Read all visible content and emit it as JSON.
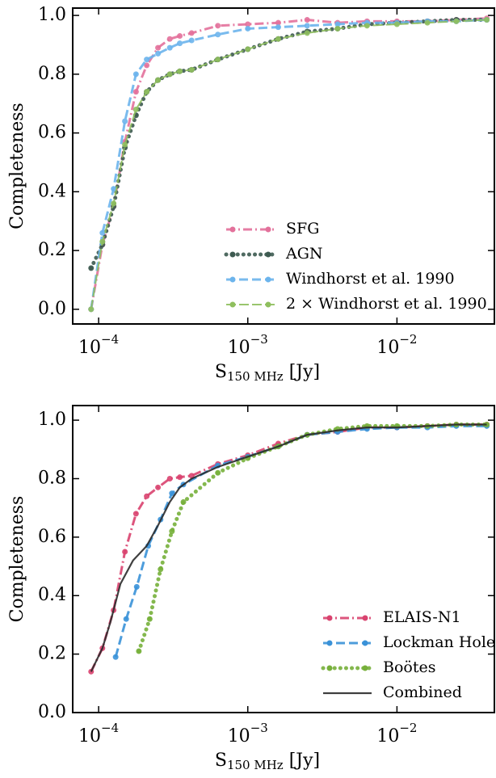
{
  "chart_data": [
    {
      "type": "line",
      "xlabel": "S150 MHz [Jy]",
      "ylabel": "Completeness",
      "xscale": "log",
      "xlim": [
        6.7e-05,
        0.045
      ],
      "ylim": [
        -0.05,
        1.025
      ],
      "xticks": [
        {
          "value": 0.0001,
          "label": "10−4"
        },
        {
          "value": 0.001,
          "label": "10−3"
        },
        {
          "value": 0.01,
          "label": "10−2"
        }
      ],
      "yticks": [
        {
          "value": 0,
          "label": "0.0"
        },
        {
          "value": 0.2,
          "label": "0.2"
        },
        {
          "value": 0.4,
          "label": "0.4"
        },
        {
          "value": 0.6,
          "label": "0.6"
        },
        {
          "value": 0.8,
          "label": "0.8"
        },
        {
          "value": 1,
          "label": "1.0"
        }
      ],
      "legend": "lower right",
      "series": [
        {
          "name": "SFG",
          "color": "#e3719b",
          "linestyle": "dashdot",
          "marker": "circle",
          "x": [
            8.9e-05,
            0.000106,
            0.000126,
            0.00015,
            0.000178,
            0.00021,
            0.00025,
            0.0003,
            0.00035,
            0.00042,
            0.00063,
            0.001,
            0.0016,
            0.0025,
            0.004,
            0.0063,
            0.01,
            0.016,
            0.025,
            0.04
          ],
          "values": [
            0.0,
            0.22,
            0.35,
            0.57,
            0.74,
            0.83,
            0.89,
            0.92,
            0.93,
            0.94,
            0.965,
            0.97,
            0.975,
            0.985,
            0.975,
            0.98,
            0.98,
            0.98,
            0.985,
            0.99
          ]
        },
        {
          "name": "AGN",
          "color": "#3d5a50",
          "linestyle": "dotted",
          "marker": "circle",
          "x": [
            8.9e-05,
            0.000106,
            0.000126,
            0.00015,
            0.000178,
            0.00021,
            0.00025,
            0.0003,
            0.00035,
            0.00042,
            0.00063,
            0.001,
            0.0016,
            0.0025,
            0.004,
            0.0063,
            0.01,
            0.016,
            0.025,
            0.04
          ],
          "values": [
            0.14,
            0.22,
            0.35,
            0.55,
            0.66,
            0.74,
            0.78,
            0.8,
            0.81,
            0.815,
            0.85,
            0.885,
            0.92,
            0.945,
            0.955,
            0.97,
            0.975,
            0.98,
            0.985,
            0.985
          ]
        },
        {
          "name": "Windhorst et al. 1990",
          "color": "#6cb4ec",
          "linestyle": "dashed",
          "marker": "circle",
          "x": [
            8.9e-05,
            0.000106,
            0.000126,
            0.00015,
            0.000178,
            0.00021,
            0.00025,
            0.0003,
            0.00035,
            0.00042,
            0.00063,
            0.001,
            0.0016,
            0.0025,
            0.004,
            0.0063,
            0.01,
            0.016,
            0.025,
            0.04
          ],
          "values": [
            0.0,
            0.26,
            0.41,
            0.64,
            0.8,
            0.85,
            0.87,
            0.89,
            0.905,
            0.915,
            0.935,
            0.955,
            0.96,
            0.965,
            0.97,
            0.975,
            0.975,
            0.98,
            0.98,
            0.985
          ]
        },
        {
          "name": "2 × Windhorst et al. 1990",
          "color": "#8fbf5e",
          "linestyle": "longdash",
          "marker": "circle",
          "x": [
            8.9e-05,
            0.000106,
            0.000126,
            0.00015,
            0.000178,
            0.00021,
            0.00025,
            0.0003,
            0.00035,
            0.00042,
            0.00063,
            0.001,
            0.0016,
            0.0025,
            0.004,
            0.0063,
            0.01,
            0.016,
            0.025,
            0.04
          ],
          "values": [
            0.0,
            0.23,
            0.36,
            0.56,
            0.68,
            0.74,
            0.78,
            0.8,
            0.81,
            0.815,
            0.85,
            0.885,
            0.92,
            0.94,
            0.955,
            0.965,
            0.97,
            0.975,
            0.98,
            0.985
          ]
        }
      ]
    },
    {
      "type": "line",
      "xlabel": "S150 MHz [Jy]",
      "ylabel": "Completeness",
      "xscale": "log",
      "xlim": [
        6.7e-05,
        0.045
      ],
      "ylim": [
        0,
        1.05
      ],
      "xticks": [
        {
          "value": 0.0001,
          "label": "10−4"
        },
        {
          "value": 0.001,
          "label": "10−3"
        },
        {
          "value": 0.01,
          "label": "10−2"
        }
      ],
      "yticks": [
        {
          "value": 0,
          "label": "0.0"
        },
        {
          "value": 0.2,
          "label": "0.2"
        },
        {
          "value": 0.4,
          "label": "0.4"
        },
        {
          "value": 0.6,
          "label": "0.6"
        },
        {
          "value": 0.8,
          "label": "0.8"
        },
        {
          "value": 1,
          "label": "1.0"
        }
      ],
      "legend": "lower right",
      "series": [
        {
          "name": "ELAIS-N1",
          "color": "#d9436f",
          "linestyle": "dashdot",
          "marker": "circle",
          "x": [
            8.9e-05,
            0.000106,
            0.000126,
            0.00015,
            0.000178,
            0.00021,
            0.00025,
            0.0003,
            0.00035,
            0.00042,
            0.00063,
            0.001,
            0.0016,
            0.0025,
            0.004,
            0.0063,
            0.01,
            0.016,
            0.025,
            0.04
          ],
          "values": [
            0.14,
            0.22,
            0.35,
            0.55,
            0.68,
            0.74,
            0.77,
            0.8,
            0.805,
            0.81,
            0.85,
            0.88,
            0.92,
            0.95,
            0.96,
            0.975,
            0.975,
            0.98,
            0.985,
            0.985
          ]
        },
        {
          "name": "Lockman Hole",
          "color": "#3a92d8",
          "linestyle": "dashed",
          "marker": "circle",
          "x": [
            0.00013,
            0.000153,
            0.00018,
            0.000215,
            0.00026,
            0.00031,
            0.00037,
            0.00063,
            0.001,
            0.0016,
            0.0025,
            0.004,
            0.0063,
            0.01,
            0.016,
            0.025,
            0.04
          ],
          "values": [
            0.19,
            0.32,
            0.43,
            0.57,
            0.66,
            0.75,
            0.78,
            0.845,
            0.875,
            0.91,
            0.95,
            0.96,
            0.97,
            0.975,
            0.975,
            0.98,
            0.98
          ]
        },
        {
          "name": "Boötes",
          "color": "#77b03b",
          "linestyle": "dotted",
          "marker": "circle",
          "x": [
            0.000186,
            0.00022,
            0.00026,
            0.00031,
            0.00037,
            0.00063,
            0.001,
            0.0016,
            0.0025,
            0.004,
            0.0063,
            0.01,
            0.016,
            0.025,
            0.04
          ],
          "values": [
            0.21,
            0.32,
            0.49,
            0.62,
            0.72,
            0.82,
            0.87,
            0.91,
            0.95,
            0.97,
            0.98,
            0.98,
            0.98,
            0.985,
            0.985
          ]
        },
        {
          "name": "Combined",
          "color": "#2b2b2b",
          "linestyle": "solid",
          "marker": "none",
          "x": [
            8.9e-05,
            0.000106,
            0.00012,
            0.00014,
            0.00017,
            0.00021,
            0.00025,
            0.0003,
            0.00035,
            0.00042,
            0.00063,
            0.001,
            0.0016,
            0.0025,
            0.004,
            0.0063,
            0.01,
            0.016,
            0.025,
            0.04
          ],
          "values": [
            0.14,
            0.22,
            0.31,
            0.44,
            0.52,
            0.57,
            0.64,
            0.72,
            0.77,
            0.8,
            0.84,
            0.875,
            0.91,
            0.95,
            0.965,
            0.975,
            0.975,
            0.98,
            0.985,
            0.985
          ]
        }
      ]
    }
  ]
}
